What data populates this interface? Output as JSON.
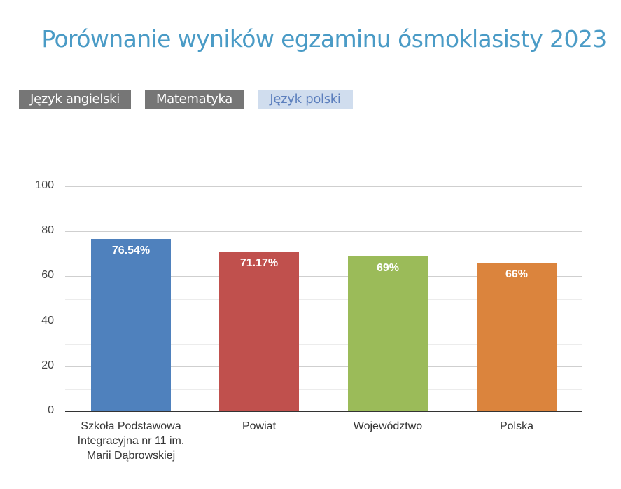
{
  "title": "Porównanie wyników egzaminu ósmoklasisty 2023",
  "tabs": [
    {
      "label": "Język angielski",
      "active": false
    },
    {
      "label": "Matematyka",
      "active": false
    },
    {
      "label": "Język polski",
      "active": true
    }
  ],
  "colors": {
    "title": "#4a9bc6",
    "tab_inactive_bg": "#767676",
    "tab_active_bg": "#d0ddee",
    "tab_active_text": "#5c7fbd"
  },
  "chart_data": {
    "type": "bar",
    "title": "Porównanie wyników egzaminu ósmoklasisty 2023",
    "subject": "Język polski",
    "categories": [
      "Szkoła Podstawowa Integracyjna nr 11 im. Marii Dąbrowskiej",
      "Powiat",
      "Województwo",
      "Polska"
    ],
    "category_lines": [
      [
        "Szkoła Podstawowa",
        "Integracyjna nr 11 im.",
        "Marii Dąbrowskiej"
      ],
      [
        "Powiat"
      ],
      [
        "Województwo"
      ],
      [
        "Polska"
      ]
    ],
    "values": [
      76.54,
      71.17,
      69,
      66
    ],
    "value_labels": [
      "76.54%",
      "71.17%",
      "69%",
      "66%"
    ],
    "bar_colors": [
      "#4f81bd",
      "#c0504d",
      "#9bbb59",
      "#db843d"
    ],
    "xlabel": "",
    "ylabel": "",
    "ylim": [
      0,
      100
    ],
    "yticks": [
      0,
      20,
      40,
      60,
      80,
      100
    ],
    "grid": true,
    "legend": false
  }
}
